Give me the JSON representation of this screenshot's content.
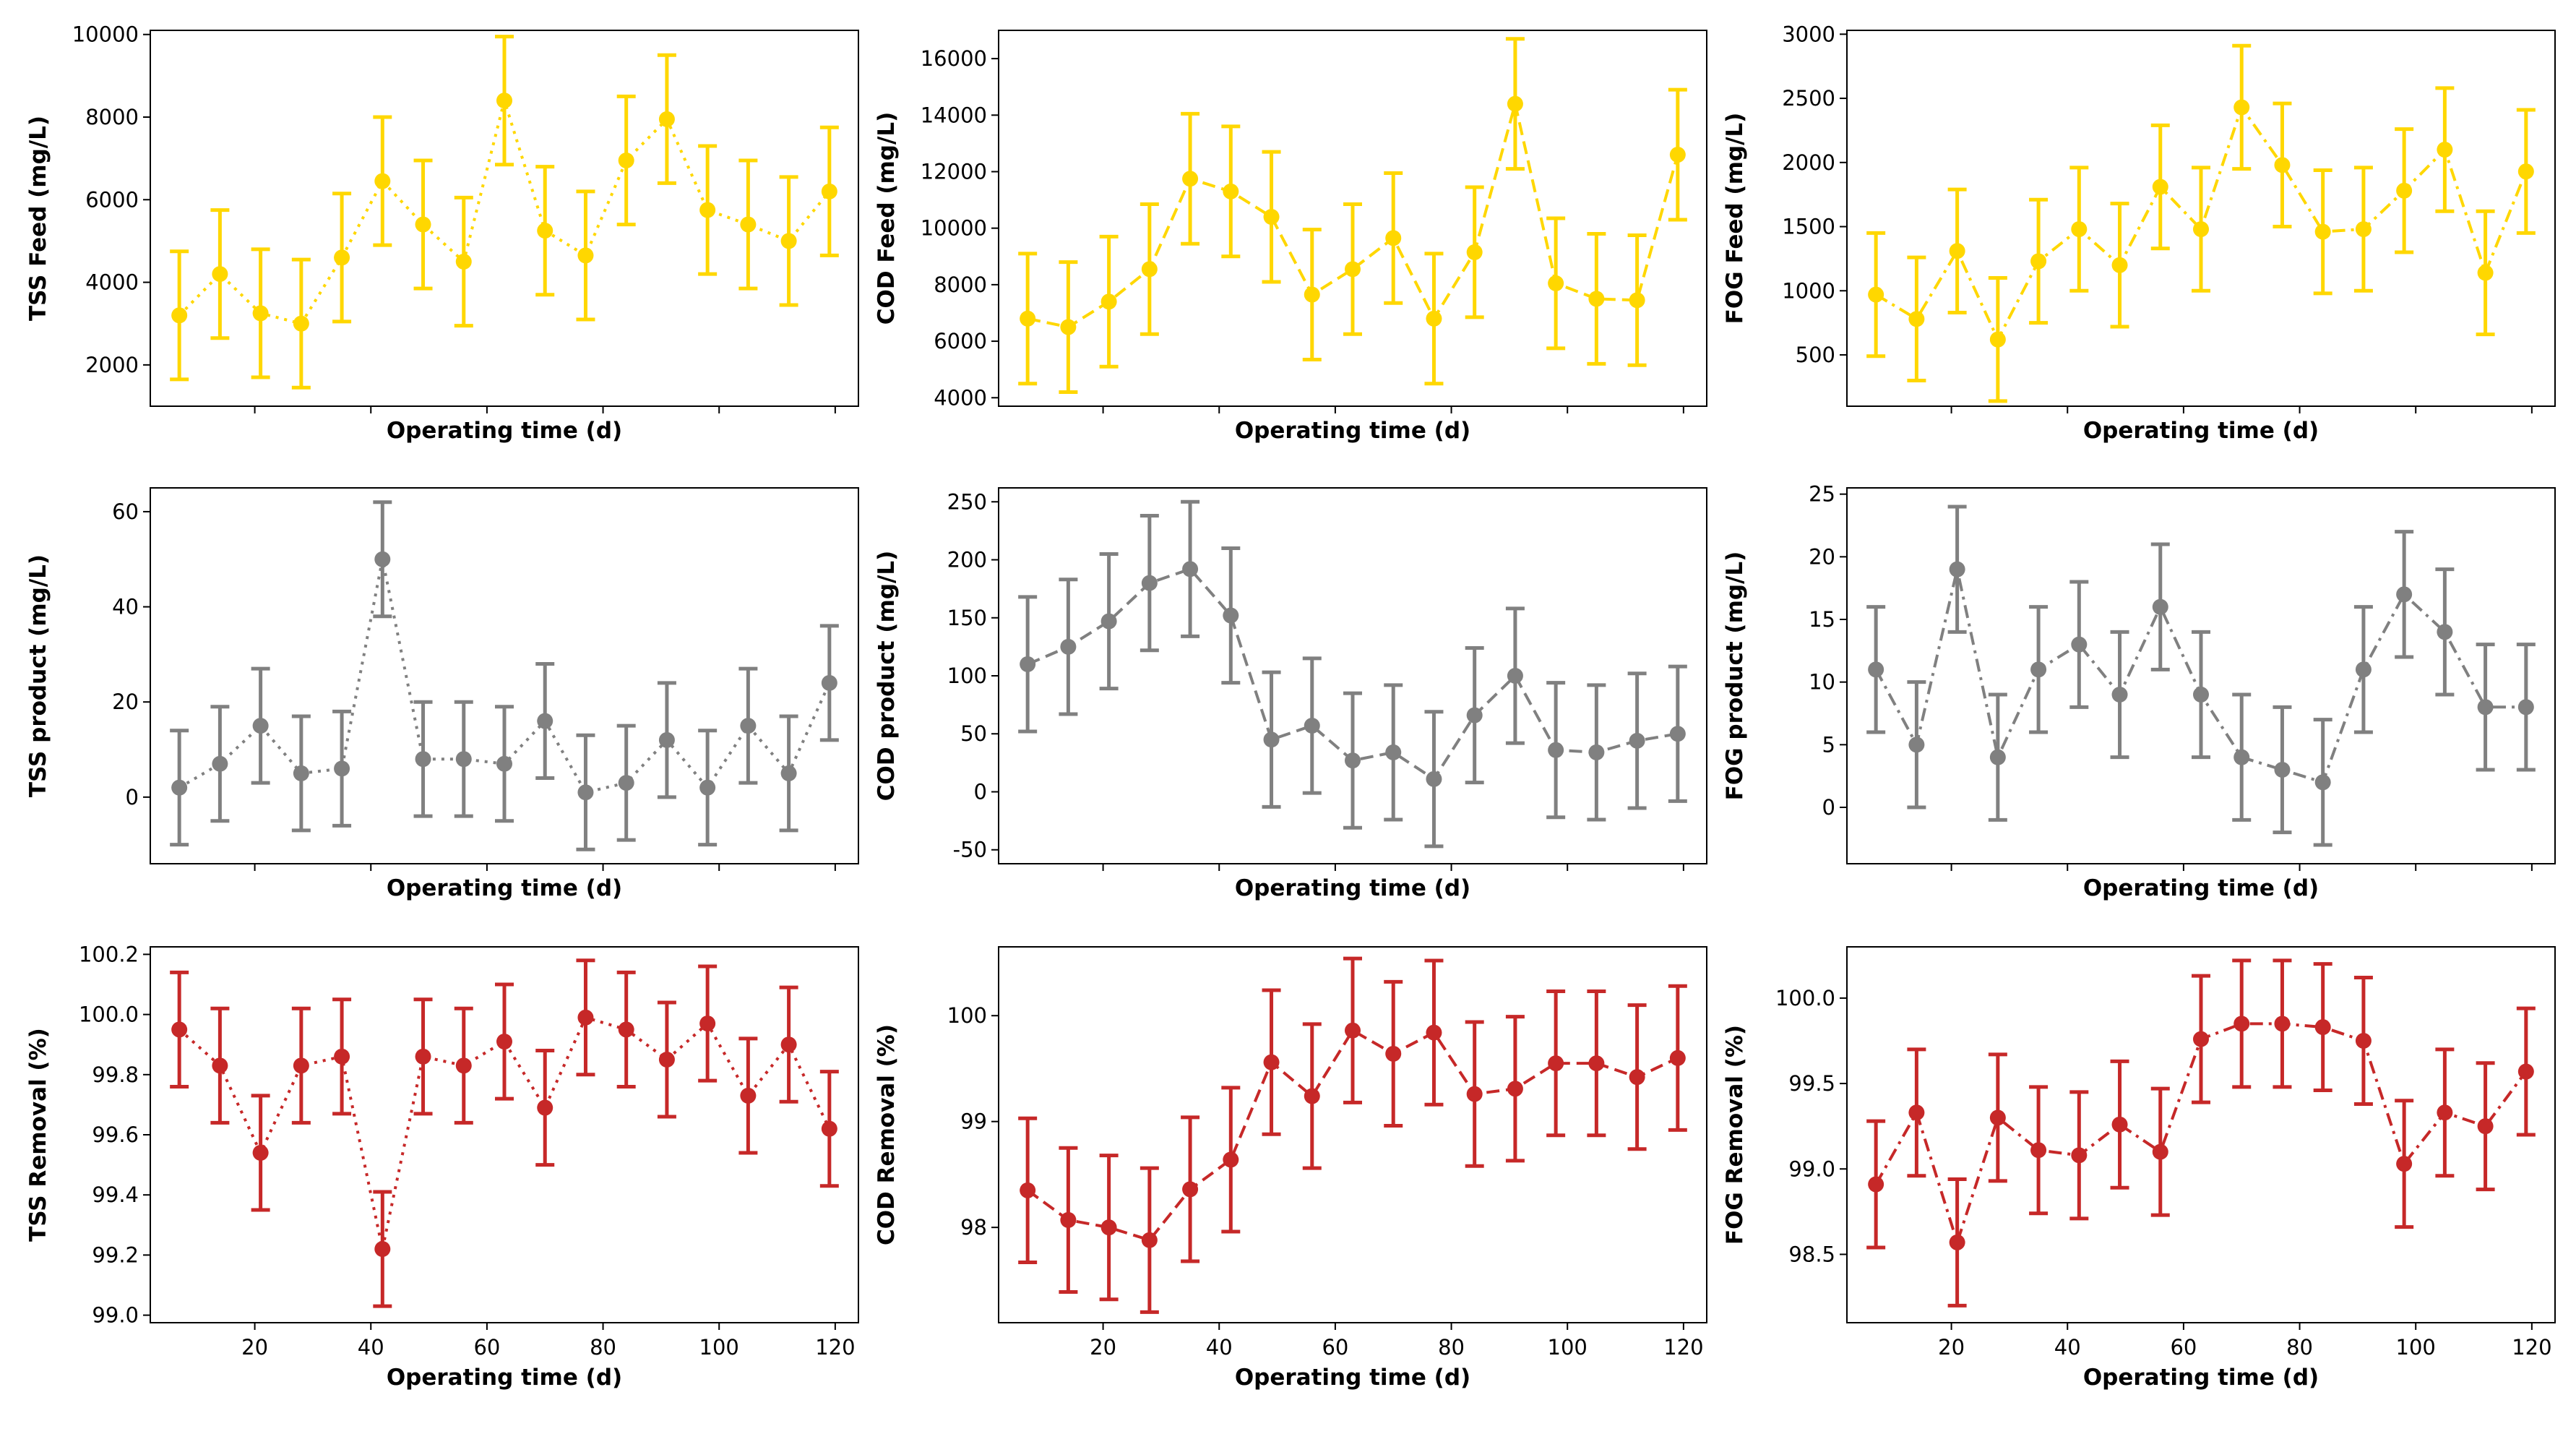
{
  "chart_data": [
    {
      "type": "line",
      "id": "tss-feed",
      "xlabel": "Operating time (d)",
      "ylabel": "TSS Feed (mg/L)",
      "color": "#ffd700",
      "line_style": "dotted",
      "ylim": [
        1000,
        10100
      ],
      "yticks": [
        "2000",
        "4000",
        "6000",
        "8000",
        "10000"
      ],
      "show_xtick_labels": false,
      "x": [
        7,
        14,
        21,
        28,
        35,
        42,
        49,
        56,
        63,
        70,
        77,
        84,
        91,
        98,
        105,
        112,
        119
      ],
      "y": [
        3200,
        4200,
        3250,
        3000,
        4600,
        6450,
        5400,
        4500,
        8400,
        5250,
        4650,
        6950,
        7950,
        5750,
        5400,
        5000,
        6200
      ],
      "err": [
        1550,
        1550,
        1550,
        1550,
        1550,
        1550,
        1550,
        1550,
        1550,
        1550,
        1550,
        1550,
        1550,
        1550,
        1550,
        1550,
        1550
      ]
    },
    {
      "type": "line",
      "id": "cod-feed",
      "xlabel": "Operating time (d)",
      "ylabel": "COD Feed (mg/L)",
      "color": "#ffd700",
      "line_style": "dashed",
      "ylim": [
        3700,
        17000
      ],
      "yticks": [
        "4000",
        "6000",
        "8000",
        "10000",
        "12000",
        "14000",
        "16000"
      ],
      "show_xtick_labels": false,
      "x": [
        7,
        14,
        21,
        28,
        35,
        42,
        49,
        56,
        63,
        70,
        77,
        84,
        91,
        98,
        105,
        112,
        119
      ],
      "y": [
        6800,
        6500,
        7400,
        8550,
        11750,
        11300,
        10400,
        7650,
        8550,
        9650,
        6800,
        9150,
        14400,
        8050,
        7500,
        7450,
        12600
      ],
      "err": [
        2300,
        2300,
        2300,
        2300,
        2300,
        2300,
        2300,
        2300,
        2300,
        2300,
        2300,
        2300,
        2300,
        2300,
        2300,
        2300,
        2300
      ]
    },
    {
      "type": "line",
      "id": "fog-feed",
      "xlabel": "Operating time (d)",
      "ylabel": "FOG Feed (mg/L)",
      "color": "#ffd700",
      "line_style": "dashdot",
      "ylim": [
        100,
        3030
      ],
      "yticks": [
        "500",
        "1000",
        "1500",
        "2000",
        "2500",
        "3000"
      ],
      "show_xtick_labels": false,
      "x": [
        7,
        14,
        21,
        28,
        35,
        42,
        49,
        56,
        63,
        70,
        77,
        84,
        91,
        98,
        105,
        112,
        119
      ],
      "y": [
        970,
        780,
        1310,
        620,
        1230,
        1480,
        1200,
        1810,
        1480,
        2430,
        1980,
        1460,
        1480,
        1780,
        2100,
        1140,
        1930
      ],
      "err": [
        480,
        480,
        480,
        480,
        480,
        480,
        480,
        480,
        480,
        480,
        480,
        480,
        480,
        480,
        480,
        480,
        480
      ]
    },
    {
      "type": "line",
      "id": "tss-product",
      "xlabel": "Operating time (d)",
      "ylabel": "TSS product (mg/L)",
      "color": "#808080",
      "line_style": "dotted",
      "ylim": [
        -14,
        65
      ],
      "yticks": [
        "0",
        "20",
        "40",
        "60"
      ],
      "show_xtick_labels": false,
      "x": [
        7,
        14,
        21,
        28,
        35,
        42,
        49,
        56,
        63,
        70,
        77,
        84,
        91,
        98,
        105,
        112,
        119
      ],
      "y": [
        2,
        7,
        15,
        5,
        6,
        50,
        8,
        8,
        7,
        16,
        1,
        3,
        12,
        2,
        15,
        5,
        24
      ],
      "err": [
        12,
        12,
        12,
        12,
        12,
        12,
        12,
        12,
        12,
        12,
        12,
        12,
        12,
        12,
        12,
        12,
        12
      ]
    },
    {
      "type": "line",
      "id": "cod-product",
      "xlabel": "Operating time (d)",
      "ylabel": "COD product (mg/L)",
      "color": "#808080",
      "line_style": "dashed",
      "ylim": [
        -62,
        262
      ],
      "yticks": [
        "-50",
        "0",
        "50",
        "100",
        "150",
        "200",
        "250"
      ],
      "show_xtick_labels": false,
      "x": [
        7,
        14,
        21,
        28,
        35,
        42,
        49,
        56,
        63,
        70,
        77,
        84,
        91,
        98,
        105,
        112,
        119
      ],
      "y": [
        110,
        125,
        147,
        180,
        192,
        152,
        45,
        57,
        27,
        34,
        11,
        66,
        100,
        36,
        34,
        44,
        50
      ],
      "err": [
        58,
        58,
        58,
        58,
        58,
        58,
        58,
        58,
        58,
        58,
        58,
        58,
        58,
        58,
        58,
        58,
        58
      ]
    },
    {
      "type": "line",
      "id": "fog-product",
      "xlabel": "Operating time (d)",
      "ylabel": "FOG product (mg/L)",
      "color": "#808080",
      "line_style": "dashdot",
      "ylim": [
        -4.5,
        25.5
      ],
      "yticks": [
        "0",
        "5",
        "10",
        "15",
        "20",
        "25"
      ],
      "show_xtick_labels": false,
      "x": [
        7,
        14,
        21,
        28,
        35,
        42,
        49,
        56,
        63,
        70,
        77,
        84,
        91,
        98,
        105,
        112,
        119
      ],
      "y": [
        11,
        5,
        19,
        4,
        11,
        13,
        9,
        16,
        9,
        4,
        3,
        2,
        11,
        17,
        14,
        8,
        8
      ],
      "err": [
        5,
        5,
        5,
        5,
        5,
        5,
        5,
        5,
        5,
        5,
        5,
        5,
        5,
        5,
        5,
        5,
        5
      ]
    },
    {
      "type": "line",
      "id": "tss-removal",
      "xlabel": "Operating time (d)",
      "ylabel": "TSS Removal (%)",
      "color": "#c62828",
      "line_style": "dotted",
      "xlim": [
        2,
        124
      ],
      "ylim": [
        98.975,
        100.225
      ],
      "yticks": [
        "99.0",
        "99.2",
        "99.4",
        "99.6",
        "99.8",
        "100.0",
        "100.2"
      ],
      "xticks": [
        "20",
        "40",
        "60",
        "80",
        "100",
        "120"
      ],
      "show_xtick_labels": true,
      "x": [
        7,
        14,
        21,
        28,
        35,
        42,
        49,
        56,
        63,
        70,
        77,
        84,
        91,
        98,
        105,
        112,
        119
      ],
      "y": [
        99.95,
        99.83,
        99.54,
        99.83,
        99.86,
        99.22,
        99.86,
        99.83,
        99.91,
        99.69,
        99.99,
        99.95,
        99.85,
        99.97,
        99.73,
        99.9,
        99.62
      ],
      "err": [
        0.19,
        0.19,
        0.19,
        0.19,
        0.19,
        0.19,
        0.19,
        0.19,
        0.19,
        0.19,
        0.19,
        0.19,
        0.19,
        0.19,
        0.19,
        0.19,
        0.19
      ]
    },
    {
      "type": "line",
      "id": "cod-removal",
      "xlabel": "Operating time (d)",
      "ylabel": "COD Removal (%)",
      "color": "#c62828",
      "line_style": "dashed",
      "xlim": [
        2,
        124
      ],
      "ylim": [
        97.1,
        100.65
      ],
      "yticks": [
        "98",
        "99",
        "100"
      ],
      "xticks": [
        "20",
        "40",
        "60",
        "80",
        "100",
        "120"
      ],
      "show_xtick_labels": true,
      "x": [
        7,
        14,
        21,
        28,
        35,
        42,
        49,
        56,
        63,
        70,
        77,
        84,
        91,
        98,
        105,
        112,
        119
      ],
      "y": [
        98.35,
        98.07,
        98.0,
        97.88,
        98.36,
        98.64,
        99.56,
        99.24,
        99.86,
        99.64,
        99.84,
        99.26,
        99.31,
        99.55,
        99.55,
        99.42,
        99.6
      ],
      "err": [
        0.68,
        0.68,
        0.68,
        0.68,
        0.68,
        0.68,
        0.68,
        0.68,
        0.68,
        0.68,
        0.68,
        0.68,
        0.68,
        0.68,
        0.68,
        0.68,
        0.68
      ]
    },
    {
      "type": "line",
      "id": "fog-removal",
      "xlabel": "Operating time (d)",
      "ylabel": "FOG Removal (%)",
      "color": "#c62828",
      "line_style": "dashdot",
      "xlim": [
        2,
        124
      ],
      "ylim": [
        98.1,
        100.3
      ],
      "yticks": [
        "98.5",
        "99.0",
        "99.5",
        "100.0"
      ],
      "xticks": [
        "20",
        "40",
        "60",
        "80",
        "100",
        "120"
      ],
      "show_xtick_labels": true,
      "x": [
        7,
        14,
        21,
        28,
        35,
        42,
        49,
        56,
        63,
        70,
        77,
        84,
        91,
        98,
        105,
        112,
        119
      ],
      "y": [
        98.91,
        99.33,
        98.57,
        99.3,
        99.11,
        99.08,
        99.26,
        99.1,
        99.76,
        99.85,
        99.85,
        99.83,
        99.75,
        99.03,
        99.33,
        99.25,
        99.57
      ],
      "err": [
        0.37,
        0.37,
        0.37,
        0.37,
        0.37,
        0.37,
        0.37,
        0.37,
        0.37,
        0.37,
        0.37,
        0.37,
        0.37,
        0.37,
        0.37,
        0.37,
        0.37
      ]
    }
  ]
}
